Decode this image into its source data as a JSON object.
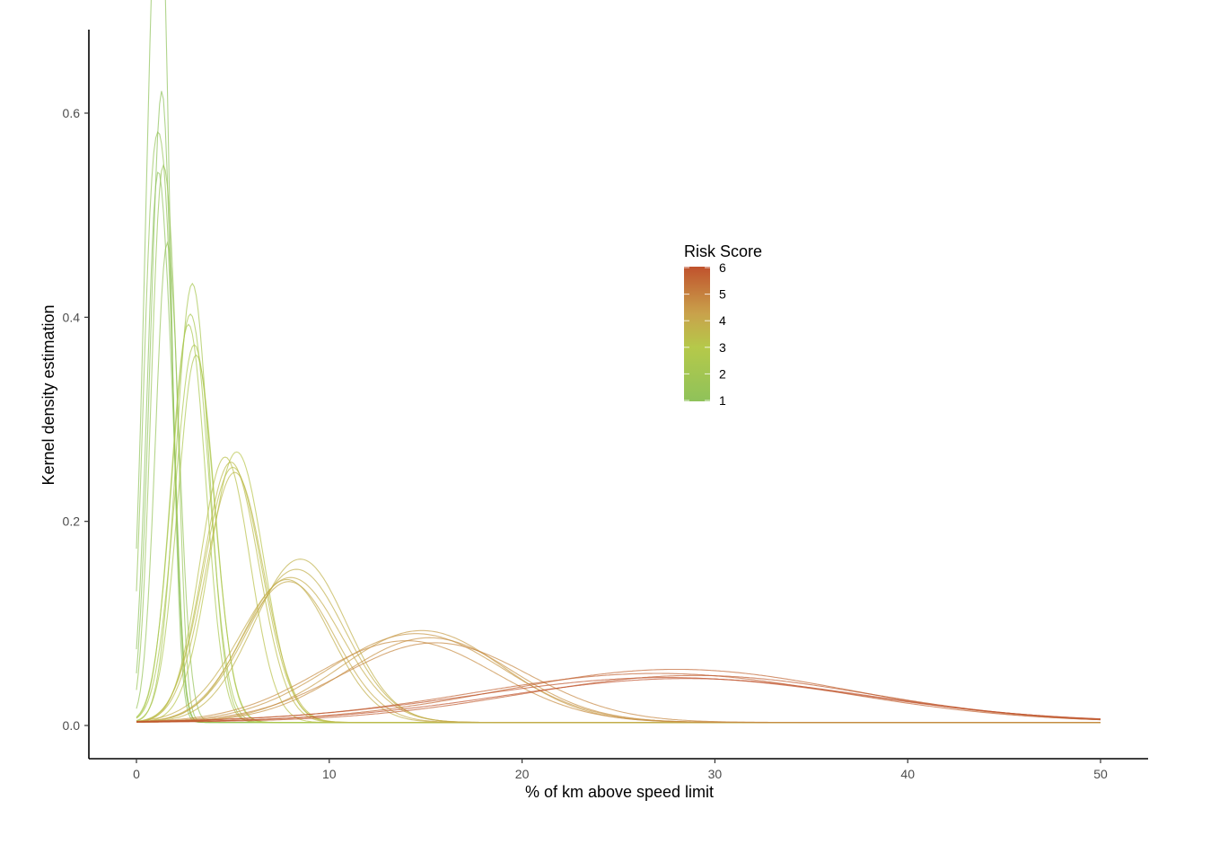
{
  "chart_data": {
    "type": "line",
    "xlabel": "% of km above speed limit",
    "ylabel": "Kernel density estimation",
    "xlim": [
      -2.5,
      52.5
    ],
    "ylim": [
      -0.03,
      0.68
    ],
    "x_ticks": [
      0,
      10,
      20,
      30,
      40,
      50
    ],
    "y_ticks": [
      0.0,
      0.2,
      0.4,
      0.6
    ],
    "y_tick_labels": [
      "0.0",
      "0.2",
      "0.4",
      "0.6"
    ],
    "grid": false,
    "legend": {
      "title": "Risk Score",
      "position": "center-right",
      "labels": [
        "6",
        "5",
        "4",
        "3",
        "2",
        "1"
      ],
      "values": [
        6,
        5,
        4,
        3,
        2,
        1
      ],
      "color_scale": [
        "#8fc25a",
        "#b5c94a",
        "#c9a24b",
        "#c0522d"
      ]
    },
    "series": [
      {
        "risk": 1,
        "components": [
          [
            0.85,
            0.55,
            0.55
          ],
          [
            1.4,
            0.45,
            0.45
          ]
        ]
      },
      {
        "risk": 1,
        "components": [
          [
            1.35,
            0.5,
            0.6
          ],
          [
            0.6,
            0.4,
            0.1
          ]
        ]
      },
      {
        "risk": 1,
        "components": [
          [
            1.1,
            0.55,
            0.53
          ],
          [
            1.9,
            0.35,
            0.12
          ]
        ]
      },
      {
        "risk": 1.3,
        "components": [
          [
            1.6,
            0.6,
            0.47
          ]
        ]
      },
      {
        "risk": 1.3,
        "components": [
          [
            0.8,
            0.5,
            0.46
          ],
          [
            1.6,
            0.45,
            0.36
          ]
        ]
      },
      {
        "risk": 1.5,
        "components": [
          [
            1.3,
            0.55,
            0.52
          ],
          [
            2.0,
            0.35,
            0.15
          ]
        ]
      },
      {
        "risk": 2.2,
        "components": [
          [
            2.9,
            0.85,
            0.43
          ]
        ]
      },
      {
        "risk": 2.3,
        "components": [
          [
            2.8,
            0.95,
            0.4
          ]
        ]
      },
      {
        "risk": 2.4,
        "components": [
          [
            2.7,
            0.9,
            0.39
          ]
        ]
      },
      {
        "risk": 2.5,
        "components": [
          [
            3.1,
            0.95,
            0.36
          ]
        ]
      },
      {
        "risk": 2.6,
        "components": [
          [
            3.0,
            1.0,
            0.37
          ]
        ]
      },
      {
        "risk": 3.2,
        "components": [
          [
            5.2,
            1.4,
            0.265
          ]
        ]
      },
      {
        "risk": 3.3,
        "components": [
          [
            4.6,
            1.3,
            0.26
          ]
        ]
      },
      {
        "risk": 3.4,
        "components": [
          [
            5.0,
            1.5,
            0.25
          ]
        ]
      },
      {
        "risk": 3.5,
        "components": [
          [
            4.9,
            1.45,
            0.255
          ]
        ]
      },
      {
        "risk": 3.6,
        "components": [
          [
            5.1,
            1.5,
            0.245
          ]
        ]
      },
      {
        "risk": 3.9,
        "components": [
          [
            8.5,
            2.4,
            0.16
          ]
        ]
      },
      {
        "risk": 4.0,
        "components": [
          [
            8.3,
            2.5,
            0.15
          ]
        ]
      },
      {
        "risk": 4.0,
        "components": [
          [
            7.8,
            2.3,
            0.14
          ]
        ]
      },
      {
        "risk": 4.1,
        "components": [
          [
            8.0,
            2.6,
            0.142
          ]
        ]
      },
      {
        "risk": 4.2,
        "components": [
          [
            7.9,
            2.4,
            0.138
          ]
        ]
      },
      {
        "risk": 4.6,
        "components": [
          [
            14.8,
            4.2,
            0.09
          ]
        ]
      },
      {
        "risk": 4.7,
        "components": [
          [
            14.5,
            4.5,
            0.087
          ]
        ]
      },
      {
        "risk": 4.8,
        "components": [
          [
            15.2,
            4.3,
            0.083
          ]
        ]
      },
      {
        "risk": 4.9,
        "components": [
          [
            14.0,
            4.6,
            0.08
          ]
        ]
      },
      {
        "risk": 5.0,
        "components": [
          [
            15.5,
            4.8,
            0.078
          ]
        ]
      },
      {
        "risk": 5.6,
        "components": [
          [
            28.0,
            9.0,
            0.052
          ]
        ]
      },
      {
        "risk": 5.7,
        "components": [
          [
            27.0,
            9.5,
            0.048
          ]
        ]
      },
      {
        "risk": 5.8,
        "components": [
          [
            29.0,
            9.0,
            0.046
          ]
        ]
      },
      {
        "risk": 5.9,
        "components": [
          [
            27.5,
            10.0,
            0.044
          ]
        ]
      },
      {
        "risk": 6.0,
        "components": [
          [
            28.5,
            9.5,
            0.043
          ]
        ]
      }
    ]
  }
}
